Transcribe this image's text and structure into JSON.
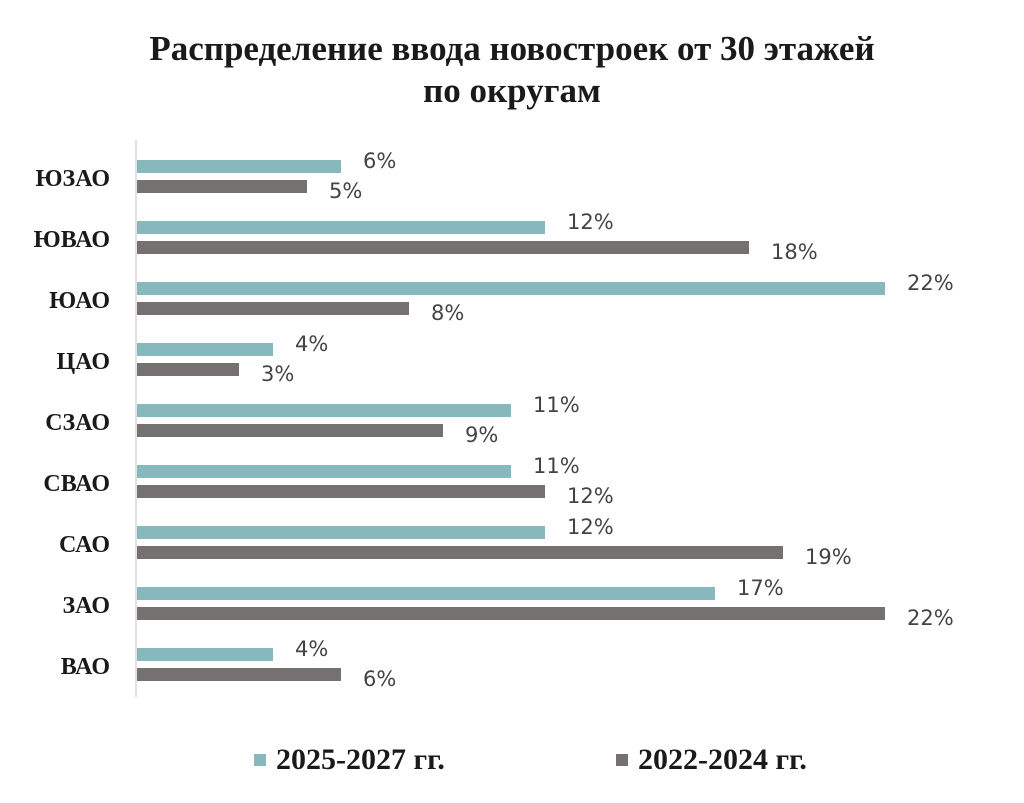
{
  "chart_data": {
    "type": "bar",
    "orientation": "horizontal",
    "title": "Распределение ввода новостроек от 30 этажей по округам",
    "title_lines": [
      "Распределение ввода новостроек от 30 этажей",
      "по округам"
    ],
    "categories": [
      "ЮЗАО",
      "ЮВАО",
      "ЮАО",
      "ЦАО",
      "СЗАО",
      "СВАО",
      "САО",
      "ЗАО",
      "ВАО"
    ],
    "series": [
      {
        "name": "2025-2027 гг.",
        "color": "#86b8bd",
        "values": [
          6,
          12,
          22,
          4,
          11,
          11,
          12,
          17,
          4
        ],
        "labels": [
          "6%",
          "12%",
          "22%",
          "4%",
          "11%",
          "11%",
          "12%",
          "17%",
          "4%"
        ]
      },
      {
        "name": "2022-2024 гг.",
        "color": "#767171",
        "values": [
          5,
          18,
          8,
          3,
          9,
          12,
          19,
          22,
          6
        ],
        "labels": [
          "5%",
          "18%",
          "8%",
          "3%",
          "9%",
          "12%",
          "19%",
          "22%",
          "6%"
        ]
      }
    ],
    "value_unit": "%",
    "xlim": [
      0,
      22
    ],
    "grid": false,
    "legend_position": "bottom"
  }
}
